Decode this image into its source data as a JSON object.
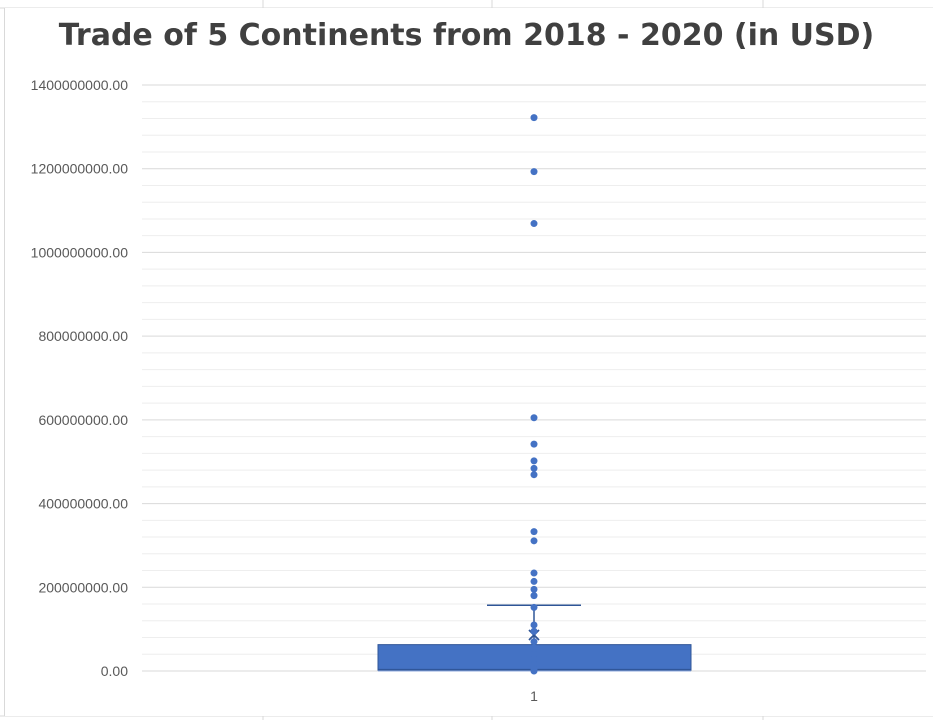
{
  "chart_data": {
    "type": "box",
    "title": "Trade of 5 Continents from 2018 - 2020 (in USD)",
    "xlabel": "",
    "ylabel": "",
    "categories": [
      "1"
    ],
    "ylim": [
      0,
      1400000000
    ],
    "y_ticks": [
      {
        "value": 0,
        "label": "0.00"
      },
      {
        "value": 200000000,
        "label": "200000000.00"
      },
      {
        "value": 400000000,
        "label": "400000000.00"
      },
      {
        "value": 600000000,
        "label": "600000000.00"
      },
      {
        "value": 800000000,
        "label": "800000000.00"
      },
      {
        "value": 1000000000,
        "label": "1000000000.00"
      },
      {
        "value": 1200000000,
        "label": "1200000000.00"
      },
      {
        "value": 1400000000,
        "label": "1400000000.00"
      }
    ],
    "grid": "major and minor horizontal",
    "legend": "none",
    "box": {
      "min": 0,
      "q1": 2000000,
      "median": 4000000,
      "q3": 63000000,
      "upper_whisker": 157000000,
      "mean": 86000000
    },
    "points": [
      1322000000,
      1193000000,
      1069000000,
      605000000,
      542000000,
      502000000,
      484000000,
      469000000,
      333000000,
      311000000,
      234000000,
      214000000,
      195000000,
      180000000,
      152000000,
      110000000,
      95000000,
      70000000,
      55000000,
      40000000,
      28000000,
      15000000,
      5000000,
      0
    ],
    "colors": {
      "box_fill": "#4472c4",
      "box_stroke": "#2f5597",
      "point": "#4472c4",
      "grid_major": "#d9d9d9",
      "grid_minor": "#eeeeee",
      "text": "#595959",
      "title": "#404040"
    }
  }
}
